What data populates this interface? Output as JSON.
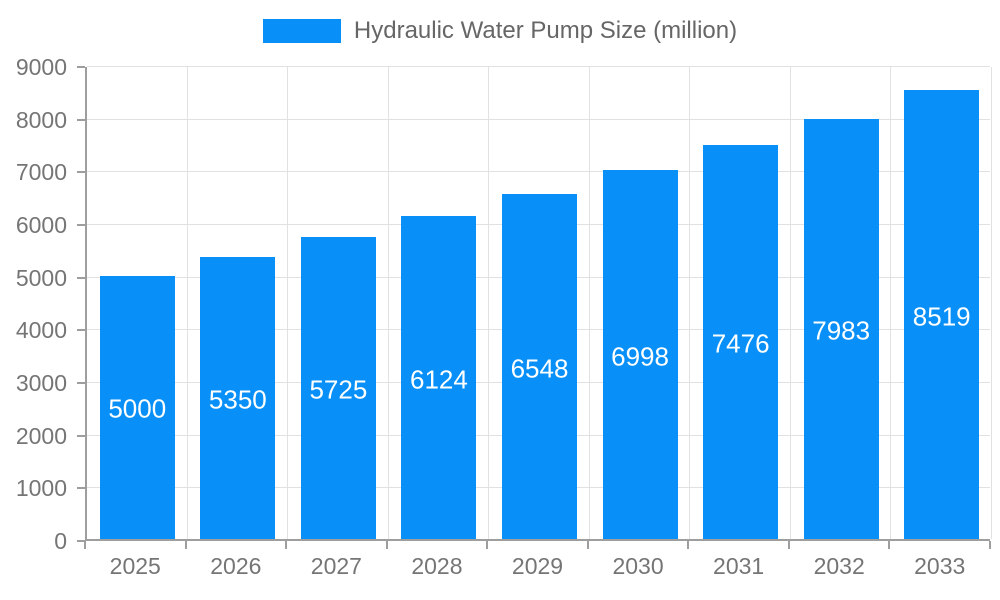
{
  "legend": {
    "label": "Hydraulic Water Pump Size (million)"
  },
  "chart_data": {
    "type": "bar",
    "title": "Hydraulic Water Pump Size (million)",
    "categories": [
      "2025",
      "2026",
      "2027",
      "2028",
      "2029",
      "2030",
      "2031",
      "2032",
      "2033"
    ],
    "values": [
      5000,
      5350,
      5725,
      6124,
      6548,
      6998,
      7476,
      7983,
      8519
    ],
    "series_name": "Hydraulic Water Pump Size (million)",
    "xlabel": "",
    "ylabel": "",
    "ylim": [
      0,
      9000
    ],
    "ytick_step": 1000,
    "yticks": [
      0,
      1000,
      2000,
      3000,
      4000,
      5000,
      6000,
      7000,
      8000,
      9000
    ],
    "grid": true,
    "legend_position": "top",
    "bar_labels_visible": true,
    "colors": {
      "bar": "#0990f8",
      "bar_label": "#ffffff",
      "axis": "#9e9e9e",
      "grid": "#e1e1e1",
      "tick_text": "#757575",
      "legend_text": "#666666"
    }
  }
}
